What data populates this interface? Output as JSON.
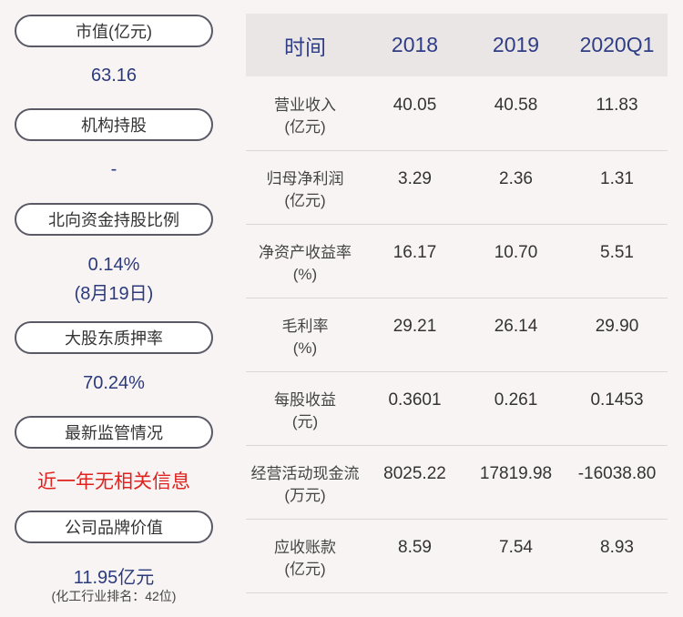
{
  "left": {
    "items": [
      {
        "label": "市值(亿元)",
        "value": "63.16"
      },
      {
        "label": "机构持股",
        "value": "-"
      },
      {
        "label": "北向资金持股比例",
        "value": "0.14%",
        "value2": "(8月19日)"
      },
      {
        "label": "大股东质押率",
        "value": "70.24%"
      },
      {
        "label": "最新监管情况",
        "value": "近一年无相关信息"
      },
      {
        "label": "公司品牌价值",
        "value": "11.95亿元",
        "note": "(化工行业排名：42位)"
      }
    ]
  },
  "table": {
    "header": [
      "时间",
      "2018",
      "2019",
      "2020Q1"
    ],
    "rows": [
      {
        "label": [
          "营业收入",
          "(亿元)"
        ],
        "values": [
          "40.05",
          "40.58",
          "11.83"
        ]
      },
      {
        "label": [
          "归母净利润",
          "(亿元)"
        ],
        "values": [
          "3.29",
          "2.36",
          "1.31"
        ]
      },
      {
        "label": [
          "净资产收益率",
          "(%)"
        ],
        "values": [
          "16.17",
          "10.70",
          "5.51"
        ]
      },
      {
        "label": [
          "毛利率",
          "(%)"
        ],
        "values": [
          "29.21",
          "26.14",
          "29.90"
        ]
      },
      {
        "label": [
          "每股收益",
          "(元)"
        ],
        "values": [
          "0.3601",
          "0.261",
          "0.1453"
        ]
      },
      {
        "label": [
          "经营活动现金流",
          "(万元)"
        ],
        "values": [
          "8025.22",
          "17819.98",
          "-16038.80"
        ]
      },
      {
        "label": [
          "应收账款",
          "(亿元)"
        ],
        "values": [
          "8.59",
          "7.54",
          "8.93"
        ]
      }
    ]
  }
}
